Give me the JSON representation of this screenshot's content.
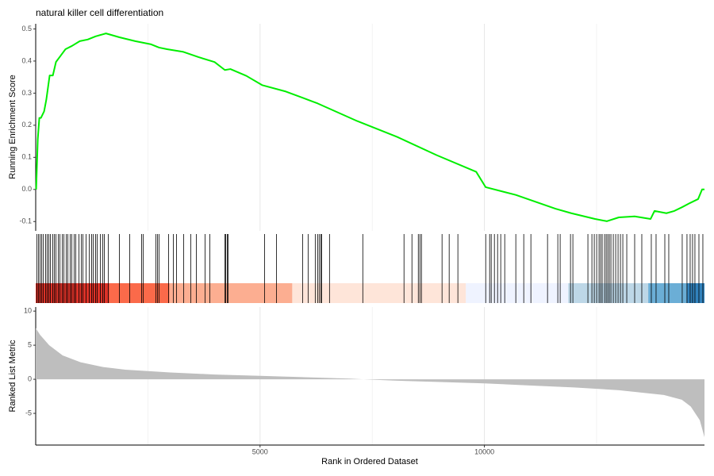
{
  "chart_data": [
    {
      "type": "line",
      "title": "natural killer cell differentiation",
      "y_label": "Running Enrichment Score",
      "color": "#00ee00",
      "xlim": [
        0,
        14905
      ],
      "ylim": [
        -0.129,
        0.516
      ],
      "yticks": [
        -0.1,
        {
          "value": 0,
          "label": "0.0"
        },
        0.1,
        0.2,
        0.3,
        0.4,
        0.5
      ],
      "xticks": [
        5000,
        10000
      ],
      "minor_xticks": [
        2500,
        7500,
        12500
      ],
      "x": [
        10,
        46,
        81,
        117,
        187,
        237,
        311,
        382,
        452,
        558,
        664,
        806,
        982,
        1159,
        1336,
        1566,
        1866,
        2219,
        2573,
        2749,
        2926,
        3279,
        3633,
        3986,
        4216,
        4340,
        4693,
        5046,
        5576,
        6283,
        7166,
        8050,
        8933,
        9817,
        10029,
        10700,
        11583,
        11936,
        12466,
        12731,
        12996,
        13349,
        13703,
        13791,
        14056,
        14233,
        14409,
        14586,
        14763,
        14852,
        14905
      ],
      "values": [
        0,
        0.156,
        0.223,
        0.223,
        0.243,
        0.28,
        0.355,
        0.355,
        0.397,
        0.417,
        0.437,
        0.447,
        0.462,
        0.467,
        0.477,
        0.486,
        0.474,
        0.462,
        0.452,
        0.442,
        0.437,
        0.429,
        0.412,
        0.397,
        0.372,
        0.375,
        0.354,
        0.325,
        0.305,
        0.268,
        0.213,
        0.164,
        0.107,
        0.055,
        0.007,
        -0.017,
        -0.06,
        -0.074,
        -0.092,
        -0.099,
        -0.087,
        -0.084,
        -0.092,
        -0.067,
        -0.074,
        -0.067,
        -0.055,
        -0.042,
        -0.03,
        0,
        0
      ]
    },
    {
      "type": "rug",
      "color": "#000000",
      "xlim": [
        0,
        14905
      ],
      "x": [
        28,
        64,
        99,
        134,
        170,
        223,
        258,
        293,
        329,
        382,
        417,
        452,
        505,
        541,
        594,
        629,
        682,
        717,
        770,
        806,
        859,
        894,
        965,
        1018,
        1053,
        1124,
        1194,
        1247,
        1283,
        1336,
        1371,
        1442,
        1495,
        1530,
        1619,
        1866,
        2096,
        2361,
        2396,
        2678,
        2714,
        2749,
        2961,
        3067,
        3138,
        3297,
        3456,
        3580,
        3774,
        3880,
        4216,
        4234,
        4269,
        4287,
        5100,
        5365,
        5948,
        6071,
        6230,
        6283,
        6318,
        6354,
        6371,
        6548,
        7290,
        8208,
        8385,
        8527,
        8562,
        8597,
        9056,
        9215,
        9409,
        10029,
        10117,
        10152,
        10223,
        10294,
        10364,
        10453,
        10700,
        10877,
        11036,
        11407,
        11636,
        11689,
        11919,
        11972,
        12307,
        12396,
        12449,
        12502,
        12555,
        12590,
        12625,
        12678,
        12714,
        12749,
        12784,
        12820,
        12873,
        12926,
        12979,
        13032,
        13085,
        13173,
        13349,
        13508,
        13720,
        13826,
        14021,
        14109,
        14409,
        14515,
        14586,
        14639,
        14692,
        14781,
        14869
      ],
      "bands": [
        {
          "from": 0,
          "to": 1636,
          "color": "#dd3228"
        },
        {
          "from": 1636,
          "to": 2979,
          "color": "#fb6a4a"
        },
        {
          "from": 2979,
          "to": 5718,
          "color": "#fcae91"
        },
        {
          "from": 5718,
          "to": 9588,
          "color": "#fee5d9"
        },
        {
          "from": 9588,
          "to": 11867,
          "color": "#eff3ff"
        },
        {
          "from": 11867,
          "to": 13652,
          "color": "#bdd7e7"
        },
        {
          "from": 13652,
          "to": 14515,
          "color": "#6baed6"
        },
        {
          "from": 14515,
          "to": 14905,
          "color": "#3182bd"
        }
      ]
    },
    {
      "type": "area",
      "y_label": "Ranked List Metric",
      "x_label": "Rank in Ordered Dataset",
      "color": "#bebebe",
      "xlim": [
        0,
        14905
      ],
      "ylim": [
        -9.65,
        10.6
      ],
      "yticks": [
        -5,
        0,
        5,
        10
      ],
      "xticks": [
        5000,
        10000
      ],
      "minor_xticks": [
        2500,
        7500,
        12500
      ],
      "x": [
        0,
        100,
        300,
        600,
        1000,
        1500,
        2000,
        3000,
        4000,
        5000,
        6000,
        7000,
        7300,
        8000,
        9000,
        10000,
        11000,
        12000,
        13000,
        14000,
        14400,
        14600,
        14800,
        14905
      ],
      "values": [
        7.5,
        6.5,
        5,
        3.5,
        2.5,
        1.8,
        1.4,
        1.0,
        0.7,
        0.5,
        0.3,
        0.1,
        0,
        -0.2,
        -0.4,
        -0.6,
        -0.9,
        -1.2,
        -1.6,
        -2.3,
        -3,
        -4,
        -6,
        -8.5
      ]
    }
  ]
}
